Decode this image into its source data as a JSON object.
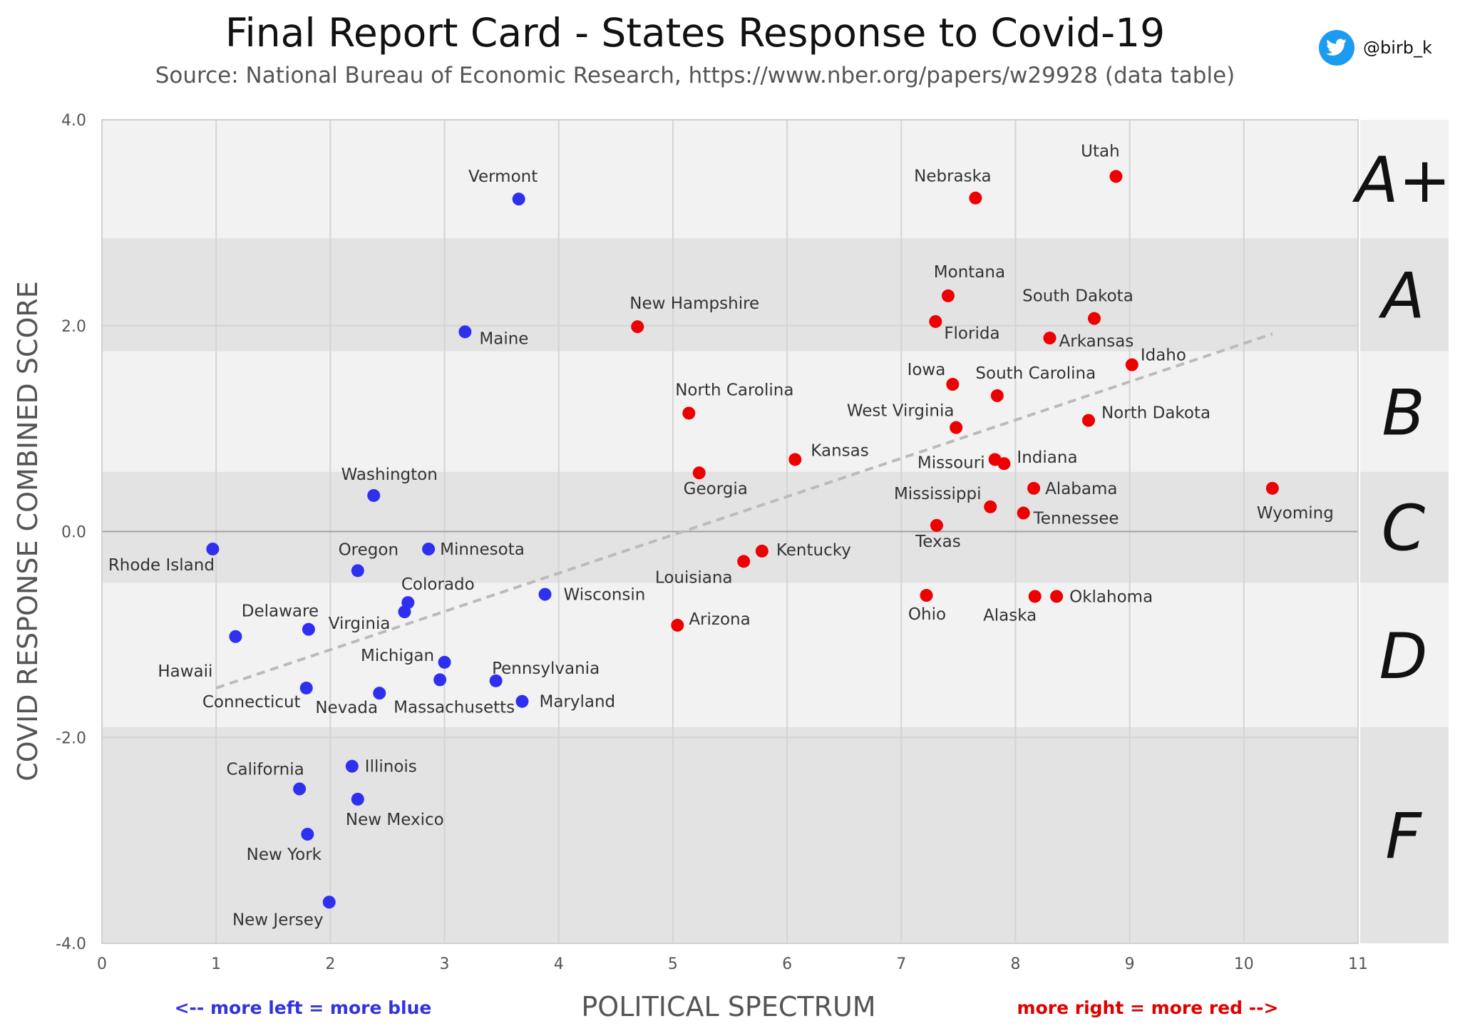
{
  "header": {
    "title": "Final Report Card - States Response to Covid-19",
    "subtitle": "Source: National Bureau of Economic Research, https://www.nber.org/papers/w29928  (data table)",
    "twitter_handle": "@birb_k",
    "twitter_icon": "twitter-bird-icon"
  },
  "notes": {
    "left": "<-- more left = more blue",
    "right": "more right = more red -->",
    "left_color": "#3333dd",
    "right_color": "#e00000"
  },
  "chart_data": {
    "type": "scatter",
    "xlabel": "POLITICAL SPECTRUM",
    "ylabel": "COVID RESPONSE COMBINED SCORE",
    "xlim": [
      0,
      11
    ],
    "ylim": [
      -4,
      4
    ],
    "x_ticks": [
      0,
      1,
      2,
      3,
      4,
      5,
      6,
      7,
      8,
      9,
      10,
      11
    ],
    "y_ticks": [
      -4,
      -2,
      0,
      2,
      4
    ],
    "y_tick_labels": [
      "-4.0",
      "-2.0",
      "0.0",
      "2.0",
      "4.0"
    ],
    "grid": true,
    "colors": {
      "blue": "#2f2ff0",
      "red": "#ee0000",
      "trend": "#bbbbbb"
    },
    "grade_bands": [
      {
        "grade": "A+",
        "ymin": 2.85,
        "ymax": 4.0
      },
      {
        "grade": "A",
        "ymin": 1.75,
        "ymax": 2.85
      },
      {
        "grade": "B",
        "ymin": 0.58,
        "ymax": 1.75
      },
      {
        "grade": "C",
        "ymin": -0.5,
        "ymax": 0.58
      },
      {
        "grade": "D",
        "ymin": -1.9,
        "ymax": -0.5
      },
      {
        "grade": "F",
        "ymin": -4.0,
        "ymax": -1.9
      }
    ],
    "trendline": {
      "x": [
        1.0,
        10.25
      ],
      "y": [
        -1.52,
        1.92
      ]
    },
    "points": [
      {
        "name": "Vermont",
        "x": 3.65,
        "y": 3.23,
        "party": "blue"
      },
      {
        "name": "Maine",
        "x": 3.18,
        "y": 1.94,
        "party": "blue"
      },
      {
        "name": "Washington",
        "x": 2.38,
        "y": 0.35,
        "party": "blue"
      },
      {
        "name": "Rhode Island",
        "x": 0.97,
        "y": -0.17,
        "party": "blue"
      },
      {
        "name": "Oregon",
        "x": 2.24,
        "y": -0.38,
        "party": "blue"
      },
      {
        "name": "Minnesota",
        "x": 2.86,
        "y": -0.17,
        "party": "blue"
      },
      {
        "name": "Colorado",
        "x": 2.68,
        "y": -0.69,
        "party": "blue"
      },
      {
        "name": "Virginia",
        "x": 2.65,
        "y": -0.78,
        "party": "blue"
      },
      {
        "name": "Delaware",
        "x": 1.81,
        "y": -0.95,
        "party": "blue"
      },
      {
        "name": "Wisconsin",
        "x": 3.88,
        "y": -0.61,
        "party": "blue"
      },
      {
        "name": "Hawaii",
        "x": 1.17,
        "y": -1.02,
        "party": "blue"
      },
      {
        "name": "Michigan",
        "x": 3.0,
        "y": -1.27,
        "party": "blue"
      },
      {
        "name": "Pennsylvania",
        "x": 3.45,
        "y": -1.45,
        "party": "blue"
      },
      {
        "name": "Massachusetts",
        "x": 2.96,
        "y": -1.44,
        "party": "blue"
      },
      {
        "name": "Connecticut",
        "x": 1.79,
        "y": -1.52,
        "party": "blue"
      },
      {
        "name": "Nevada",
        "x": 2.43,
        "y": -1.57,
        "party": "blue"
      },
      {
        "name": "Maryland",
        "x": 3.68,
        "y": -1.65,
        "party": "blue"
      },
      {
        "name": "California",
        "x": 1.73,
        "y": -2.5,
        "party": "blue"
      },
      {
        "name": "Illinois",
        "x": 2.19,
        "y": -2.28,
        "party": "blue"
      },
      {
        "name": "New Mexico",
        "x": 2.24,
        "y": -2.6,
        "party": "blue"
      },
      {
        "name": "New York",
        "x": 1.8,
        "y": -2.94,
        "party": "blue"
      },
      {
        "name": "New Jersey",
        "x": 1.99,
        "y": -3.6,
        "party": "blue"
      },
      {
        "name": "Utah",
        "x": 8.88,
        "y": 3.45,
        "party": "red"
      },
      {
        "name": "Nebraska",
        "x": 7.65,
        "y": 3.24,
        "party": "red"
      },
      {
        "name": "Montana",
        "x": 7.41,
        "y": 2.29,
        "party": "red"
      },
      {
        "name": "Florida",
        "x": 7.3,
        "y": 2.04,
        "party": "red"
      },
      {
        "name": "New Hampshire",
        "x": 4.69,
        "y": 1.99,
        "party": "red"
      },
      {
        "name": "South Dakota",
        "x": 8.69,
        "y": 2.07,
        "party": "red"
      },
      {
        "name": "Arkansas",
        "x": 8.3,
        "y": 1.88,
        "party": "red"
      },
      {
        "name": "Idaho",
        "x": 9.02,
        "y": 1.62,
        "party": "red"
      },
      {
        "name": "Iowa",
        "x": 7.45,
        "y": 1.43,
        "party": "red"
      },
      {
        "name": "South Carolina",
        "x": 7.84,
        "y": 1.32,
        "party": "red"
      },
      {
        "name": "North Carolina",
        "x": 5.14,
        "y": 1.15,
        "party": "red"
      },
      {
        "name": "North Dakota",
        "x": 8.64,
        "y": 1.08,
        "party": "red"
      },
      {
        "name": "West Virginia",
        "x": 7.48,
        "y": 1.01,
        "party": "red"
      },
      {
        "name": "Kansas",
        "x": 6.07,
        "y": 0.7,
        "party": "red"
      },
      {
        "name": "Missouri",
        "x": 7.82,
        "y": 0.7,
        "party": "red"
      },
      {
        "name": "Indiana",
        "x": 7.9,
        "y": 0.66,
        "party": "red"
      },
      {
        "name": "Georgia",
        "x": 5.23,
        "y": 0.57,
        "party": "red"
      },
      {
        "name": "Alabama",
        "x": 8.16,
        "y": 0.42,
        "party": "red"
      },
      {
        "name": "Wyoming",
        "x": 10.25,
        "y": 0.42,
        "party": "red"
      },
      {
        "name": "Mississippi",
        "x": 7.78,
        "y": 0.24,
        "party": "red"
      },
      {
        "name": "Tennessee",
        "x": 8.07,
        "y": 0.18,
        "party": "red"
      },
      {
        "name": "Texas",
        "x": 7.31,
        "y": 0.06,
        "party": "red"
      },
      {
        "name": "Kentucky",
        "x": 5.78,
        "y": -0.19,
        "party": "red"
      },
      {
        "name": "Louisiana",
        "x": 5.62,
        "y": -0.29,
        "party": "red"
      },
      {
        "name": "Ohio",
        "x": 7.22,
        "y": -0.62,
        "party": "red"
      },
      {
        "name": "Alaska",
        "x": 8.17,
        "y": -0.63,
        "party": "red"
      },
      {
        "name": "Oklahoma",
        "x": 8.36,
        "y": -0.63,
        "party": "red"
      },
      {
        "name": "Arizona",
        "x": 5.04,
        "y": -0.91,
        "party": "red"
      }
    ]
  }
}
